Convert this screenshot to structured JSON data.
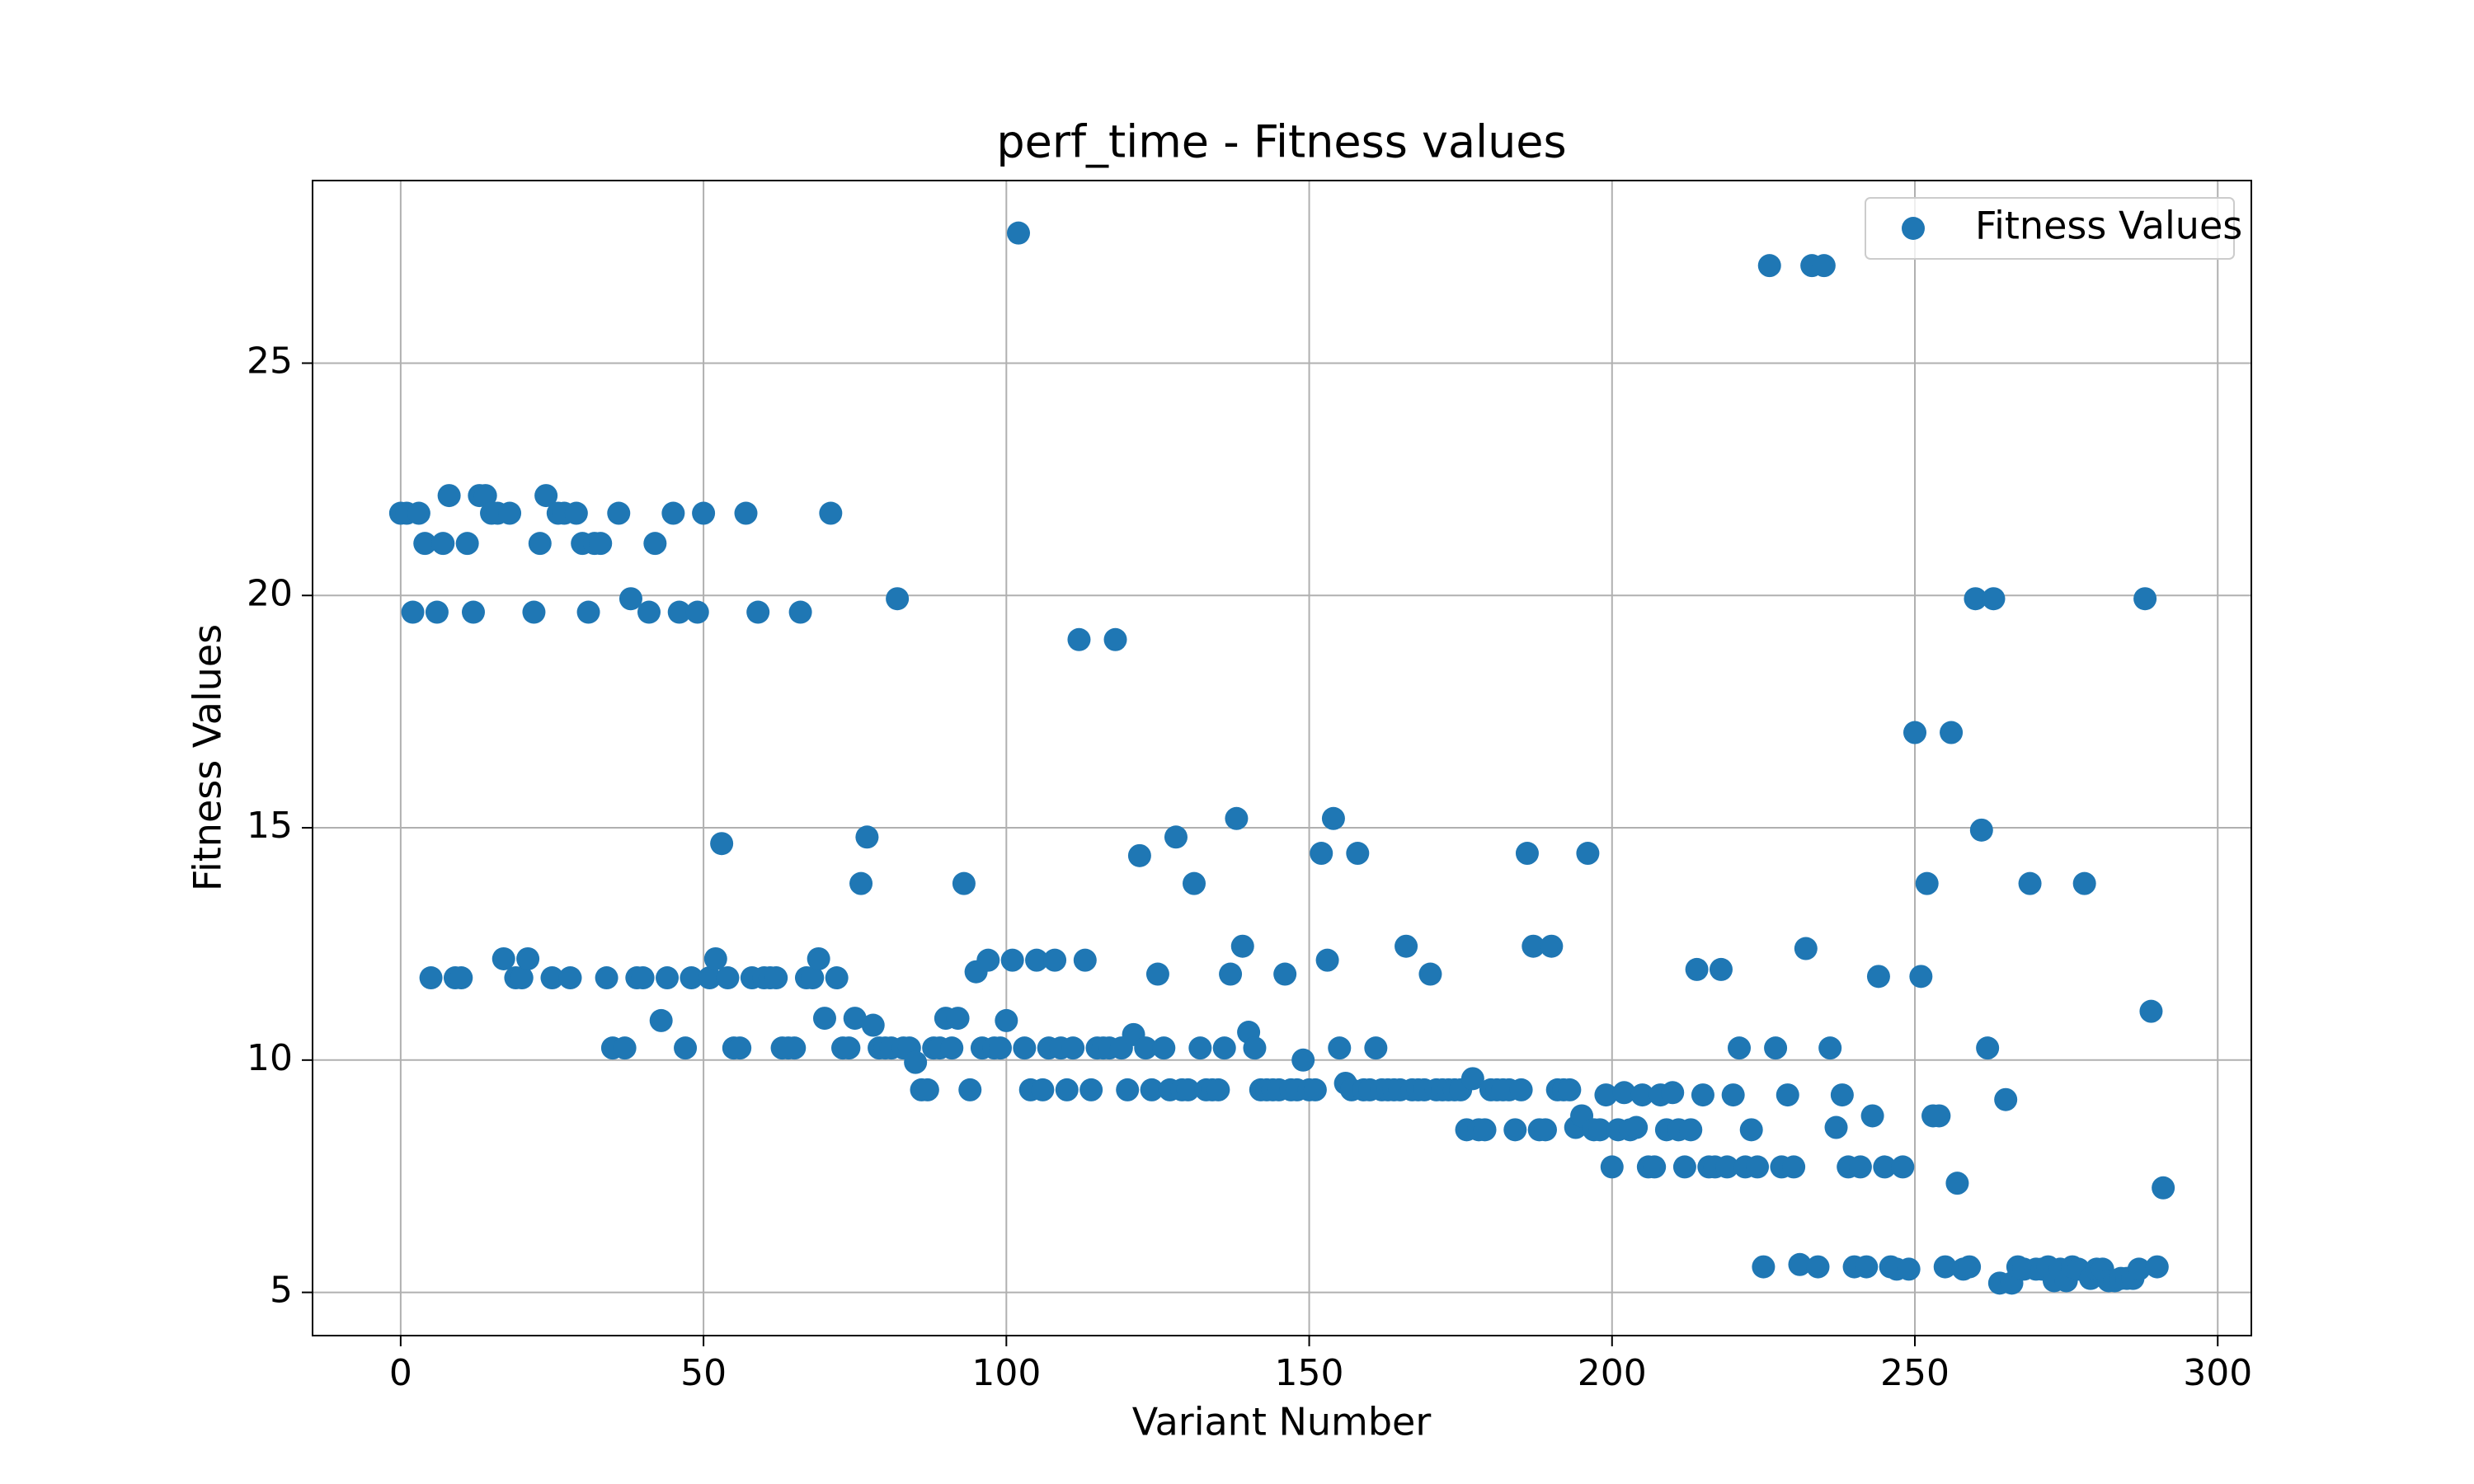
{
  "chart_data": {
    "type": "scatter",
    "title": "perf_time - Fitness values",
    "x_label": "Variant Number",
    "y_label": "Fitness Values",
    "x": [
      0,
      1,
      2,
      3,
      4,
      5,
      6,
      7,
      8,
      9,
      10,
      11,
      12,
      13,
      14,
      15,
      16,
      17,
      18,
      19,
      20,
      21,
      22,
      23,
      24,
      25,
      26,
      27,
      28,
      29,
      30,
      31,
      32,
      33,
      34,
      35,
      36,
      37,
      38,
      39,
      40,
      41,
      42,
      43,
      44,
      45,
      46,
      47,
      48,
      49,
      50,
      51,
      52,
      53,
      54,
      55,
      56,
      57,
      58,
      59,
      60,
      61,
      62,
      63,
      64,
      65,
      66,
      67,
      68,
      69,
      70,
      71,
      72,
      73,
      74,
      75,
      76,
      77,
      78,
      79,
      80,
      81,
      82,
      83,
      84,
      85,
      86,
      87,
      88,
      89,
      90,
      91,
      92,
      93,
      94,
      95,
      96,
      97,
      98,
      99,
      100,
      101,
      102,
      103,
      104,
      105,
      106,
      107,
      108,
      109,
      110,
      111,
      112,
      113,
      114,
      115,
      116,
      117,
      118,
      119,
      120,
      121,
      122,
      123,
      124,
      125,
      126,
      127,
      128,
      129,
      130,
      131,
      132,
      133,
      134,
      135,
      136,
      137,
      138,
      139,
      140,
      141,
      142,
      143,
      144,
      145,
      146,
      147,
      148,
      149,
      150,
      151,
      152,
      153,
      154,
      155,
      156,
      157,
      158,
      159,
      160,
      161,
      162,
      163,
      164,
      165,
      166,
      167,
      168,
      169,
      170,
      171,
      172,
      173,
      174,
      175,
      176,
      177,
      178,
      179,
      180,
      181,
      182,
      183,
      184,
      185,
      186,
      187,
      188,
      189,
      190,
      191,
      192,
      193,
      194,
      195,
      196,
      197,
      198,
      199,
      200,
      201,
      202,
      203,
      204,
      205,
      206,
      207,
      208,
      209,
      210,
      211,
      212,
      213,
      214,
      215,
      216,
      217,
      218,
      219,
      220,
      221,
      222,
      223,
      224,
      225,
      226,
      227,
      228,
      229,
      230,
      231,
      232,
      233,
      234,
      235,
      236,
      237,
      238,
      239,
      240,
      241,
      242,
      243,
      244,
      245,
      246,
      247,
      248,
      249,
      250,
      251,
      252,
      253,
      254,
      255,
      256,
      257,
      258,
      259,
      260,
      261,
      262,
      263,
      264,
      265,
      266,
      267,
      268,
      269,
      270,
      271,
      272,
      273,
      274,
      275,
      276,
      277,
      278,
      279,
      280,
      281,
      282,
      283,
      284,
      285,
      286,
      287,
      288,
      289,
      290,
      291
    ],
    "series": [
      {
        "name": "Fitness Values",
        "color": "#1f77b4",
        "values": [
          21.77,
          21.77,
          19.64,
          21.77,
          21.12,
          11.77,
          19.64,
          21.12,
          22.15,
          11.77,
          11.77,
          21.12,
          19.64,
          22.15,
          22.15,
          21.77,
          21.77,
          12.18,
          21.77,
          11.77,
          11.77,
          12.18,
          19.64,
          21.12,
          22.15,
          11.77,
          21.77,
          21.77,
          11.77,
          21.77,
          21.12,
          19.64,
          21.12,
          21.12,
          11.77,
          10.26,
          21.77,
          10.26,
          19.93,
          11.77,
          11.77,
          19.64,
          21.12,
          10.85,
          11.77,
          21.77,
          19.64,
          10.26,
          11.77,
          19.64,
          21.77,
          11.77,
          12.18,
          14.66,
          11.77,
          10.26,
          10.26,
          21.77,
          11.77,
          19.64,
          11.77,
          11.77,
          11.77,
          10.26,
          10.26,
          10.26,
          19.64,
          11.77,
          11.77,
          12.18,
          10.9,
          21.77,
          11.77,
          10.26,
          10.26,
          10.9,
          13.8,
          14.8,
          10.75,
          10.26,
          10.26,
          10.26,
          19.93,
          10.26,
          10.26,
          9.95,
          9.36,
          9.36,
          10.26,
          10.26,
          10.9,
          10.26,
          10.9,
          13.8,
          9.36,
          11.9,
          10.26,
          12.15,
          10.26,
          10.26,
          10.85,
          12.15,
          27.8,
          10.26,
          9.36,
          12.15,
          9.36,
          10.26,
          12.15,
          10.26,
          9.36,
          10.26,
          19.05,
          12.15,
          9.36,
          10.26,
          10.26,
          10.26,
          19.05,
          10.26,
          9.36,
          10.55,
          14.4,
          10.26,
          9.36,
          11.85,
          10.26,
          9.36,
          14.8,
          9.36,
          9.36,
          13.8,
          10.26,
          9.36,
          9.36,
          9.36,
          10.26,
          11.85,
          15.2,
          12.45,
          10.6,
          10.26,
          9.36,
          9.36,
          9.36,
          9.36,
          11.85,
          9.36,
          9.36,
          10.0,
          9.36,
          9.36,
          14.45,
          12.15,
          15.2,
          10.26,
          9.5,
          9.36,
          14.45,
          9.36,
          9.36,
          10.26,
          9.36,
          9.36,
          9.36,
          9.36,
          12.45,
          9.36,
          9.36,
          9.36,
          11.85,
          9.36,
          9.36,
          9.36,
          9.36,
          9.36,
          8.5,
          9.6,
          8.5,
          8.5,
          9.36,
          9.36,
          9.36,
          9.36,
          8.5,
          9.36,
          14.45,
          12.45,
          8.5,
          8.5,
          12.45,
          9.36,
          9.36,
          9.36,
          8.55,
          8.8,
          14.45,
          8.5,
          8.5,
          9.25,
          7.7,
          8.5,
          9.3,
          8.5,
          8.55,
          9.25,
          7.7,
          7.7,
          9.25,
          8.5,
          9.3,
          8.5,
          7.7,
          8.5,
          11.95,
          9.25,
          7.7,
          7.7,
          11.95,
          7.7,
          9.25,
          10.26,
          7.7,
          8.5,
          7.7,
          5.55,
          27.1,
          10.26,
          7.7,
          9.25,
          7.7,
          5.6,
          12.4,
          27.1,
          5.55,
          27.1,
          10.26,
          8.55,
          9.25,
          7.7,
          5.55,
          7.7,
          5.55,
          8.8,
          11.8,
          7.7,
          5.55,
          5.5,
          7.7,
          5.5,
          17.05,
          11.8,
          13.8,
          8.8,
          8.8,
          5.55,
          17.05,
          7.35,
          5.5,
          5.55,
          19.93,
          14.95,
          10.26,
          19.93,
          5.2,
          9.15,
          5.2,
          5.55,
          5.5,
          13.8,
          5.5,
          5.5,
          5.55,
          5.25,
          5.5,
          5.25,
          5.55,
          5.5,
          13.8,
          5.3,
          5.5,
          5.5,
          5.25,
          5.25,
          5.3,
          5.3,
          5.3,
          5.5,
          19.93,
          11.05,
          5.55,
          7.25
        ]
      }
    ],
    "xlim": [
      -14.55,
      305.55
    ],
    "ylim": [
      4.07,
      28.93
    ],
    "xticks": [
      0,
      50,
      100,
      150,
      200,
      250,
      300
    ],
    "yticks": [
      5,
      10,
      15,
      20,
      25
    ],
    "grid": true,
    "legend": "upper right"
  }
}
